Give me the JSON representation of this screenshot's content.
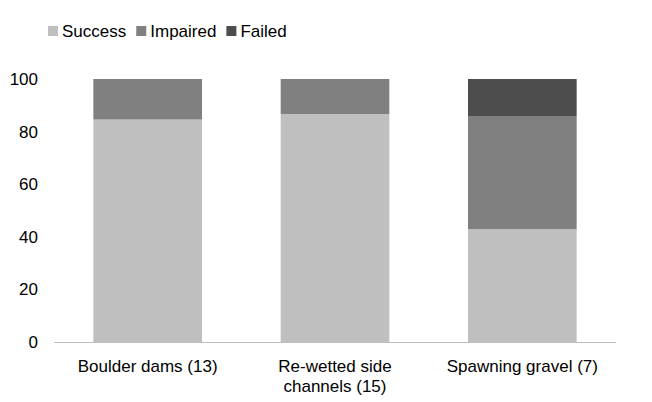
{
  "chart_data": {
    "type": "bar",
    "stacked": true,
    "categories": [
      "Boulder dams (13)",
      "Re-wetted side channels (15)",
      "Spawning gravel (7)"
    ],
    "series": [
      {
        "name": "Success",
        "color": "#bfbfbf",
        "values": [
          84.6,
          86.7,
          42.9
        ]
      },
      {
        "name": "Impaired",
        "color": "#808080",
        "values": [
          15.4,
          13.3,
          42.8
        ]
      },
      {
        "name": "Failed",
        "color": "#4d4d4d",
        "values": [
          0,
          0,
          14.3
        ]
      }
    ],
    "ylim": [
      0,
      100
    ],
    "yticks": [
      0,
      20,
      40,
      60,
      80,
      100
    ],
    "grid": false,
    "legend": "top-left"
  }
}
